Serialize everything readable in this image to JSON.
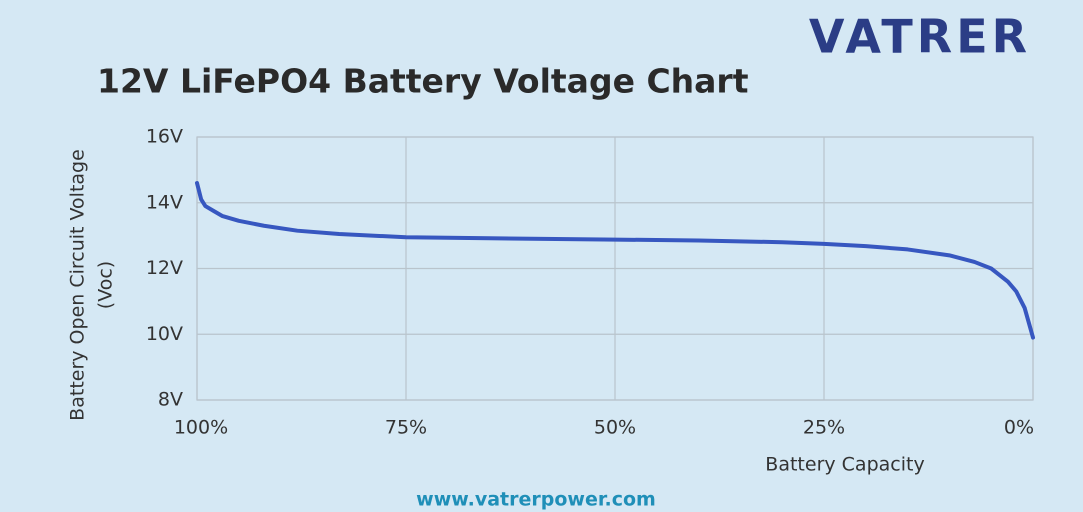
{
  "logo": "VATRER",
  "website": "www.vatrerpower.com",
  "chart_data": {
    "type": "line",
    "title": "12V LiFePO4 Battery Voltage Chart",
    "ylabel": [
      "Battery Open Circuit Voltage",
      "(Voc)"
    ],
    "xlabel": "Battery Capacity",
    "x": [
      100,
      99.5,
      99,
      98,
      97,
      95,
      92,
      88,
      83,
      75,
      65,
      50,
      40,
      30,
      25,
      20,
      15,
      10,
      7,
      5,
      3,
      2,
      1,
      0
    ],
    "series": [
      {
        "color": "#3757c0",
        "values": [
          14.6,
          14.1,
          13.9,
          13.75,
          13.6,
          13.45,
          13.3,
          13.15,
          13.05,
          12.95,
          12.92,
          12.88,
          12.85,
          12.8,
          12.75,
          12.68,
          12.58,
          12.4,
          12.2,
          12.0,
          11.6,
          11.3,
          10.8,
          9.9
        ]
      }
    ],
    "xlim": [
      100,
      0
    ],
    "ylim": [
      8,
      16
    ],
    "xticks": [
      {
        "value": 100,
        "label": "100%"
      },
      {
        "value": 75,
        "label": "75%"
      },
      {
        "value": 50,
        "label": "50%"
      },
      {
        "value": 25,
        "label": "25%"
      },
      {
        "value": 0,
        "label": "0%"
      }
    ],
    "yticks": [
      {
        "value": 8,
        "label": "8V"
      },
      {
        "value": 10,
        "label": "10V"
      },
      {
        "value": 12,
        "label": "12V"
      },
      {
        "value": 14,
        "label": "14V"
      },
      {
        "value": 16,
        "label": "16V"
      }
    ],
    "grid": true
  }
}
